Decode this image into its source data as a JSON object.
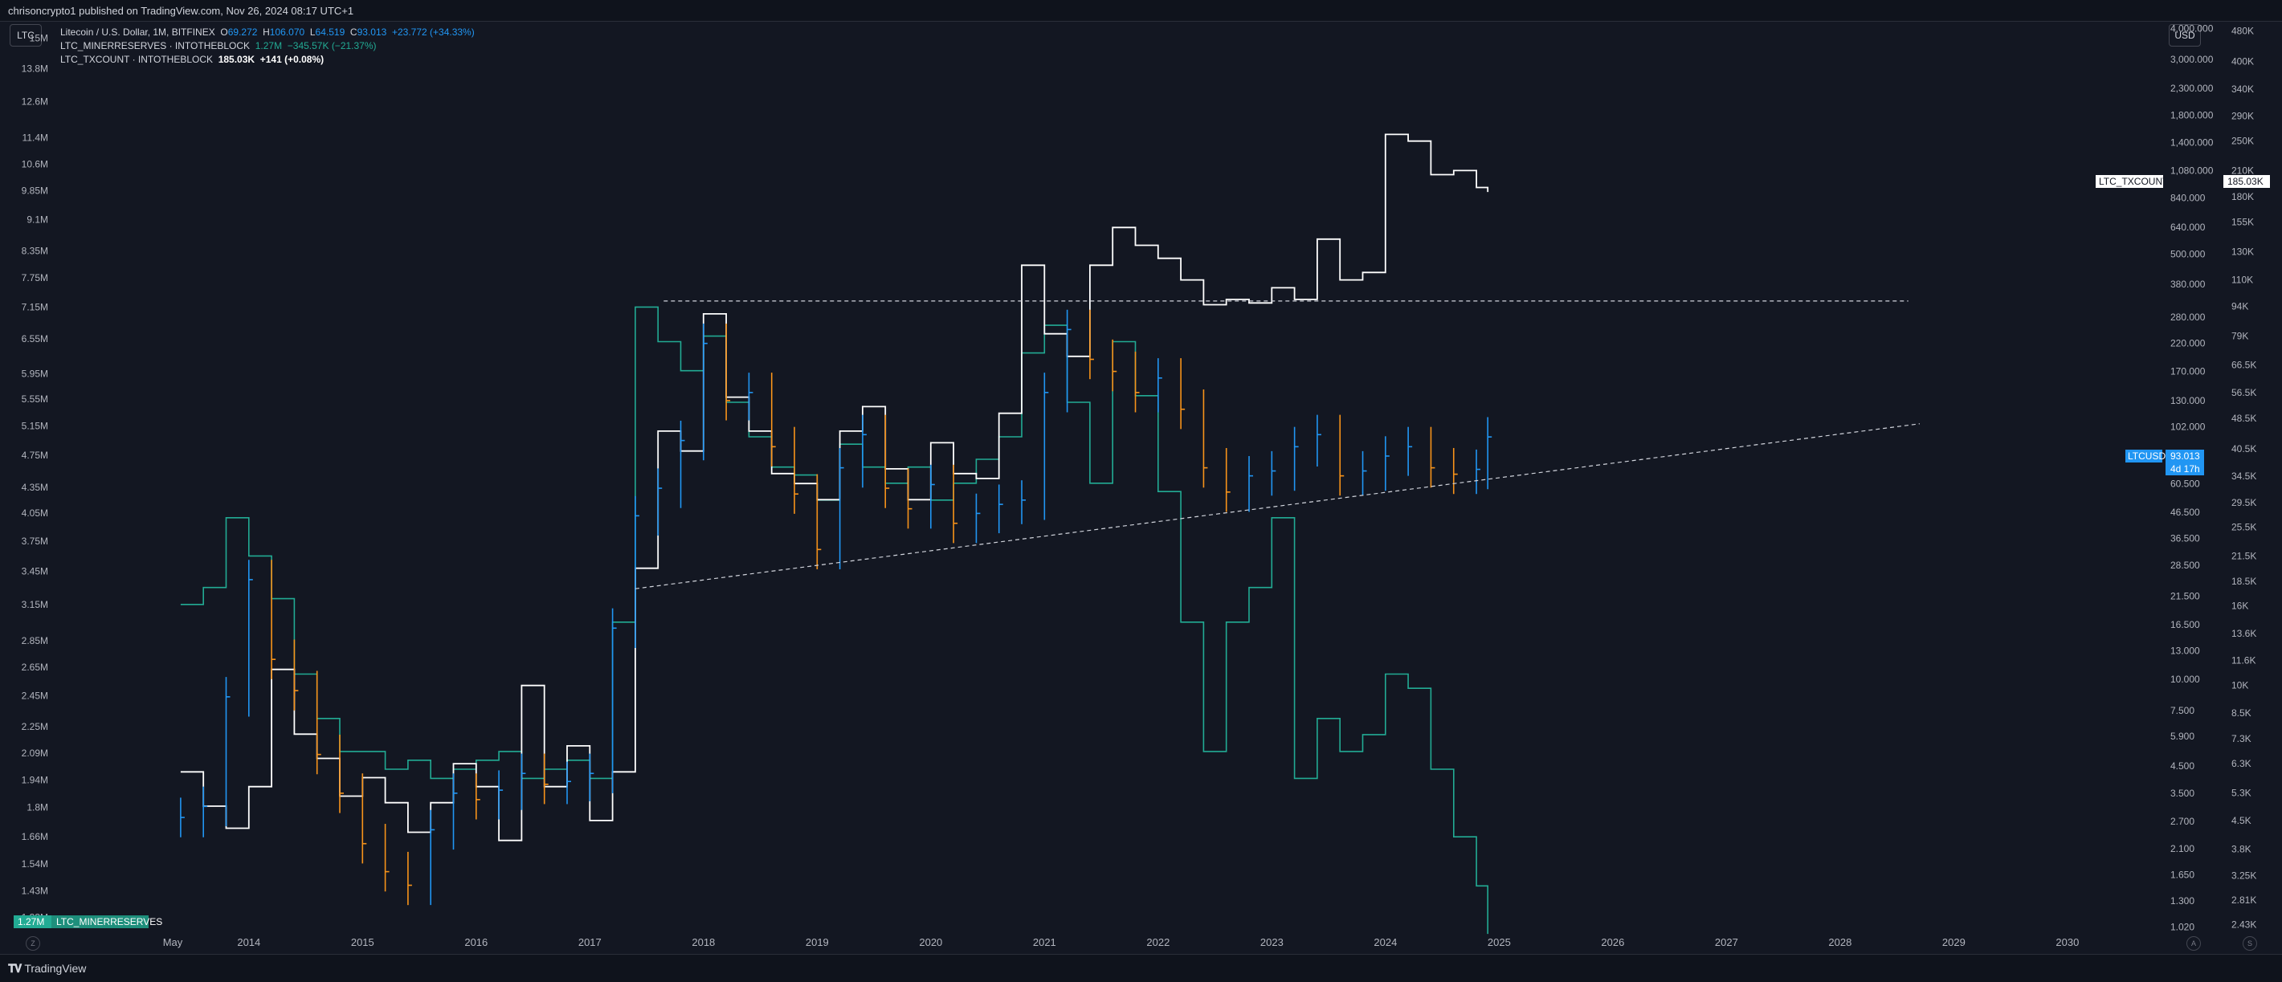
{
  "header": {
    "published": "chrisoncrypto1 published on TradingView.com, Nov 26, 2024 08:17 UTC+1"
  },
  "toolbar": {
    "symbol_button": "LTC",
    "currency_button": "USD"
  },
  "legend": {
    "main": {
      "name": "Litecoin / U.S. Dollar, 1M, BITFINEX",
      "o_label": "O",
      "o_value": "69.272",
      "h_label": "H",
      "h_value": "106.070",
      "l_label": "L",
      "l_value": "64.519",
      "c_label": "C",
      "c_value": "93.013",
      "change": "+23.772 (+34.33%)"
    },
    "miner": {
      "name": "LTC_MINERRESERVES · INTOTHEBLOCK",
      "value": "1.27M",
      "change": "−345.57K (−21.37%)"
    },
    "tx": {
      "name": "LTC_TXCOUNT · INTOTHEBLOCK",
      "value": "185.03K",
      "change": "+141 (+0.08%)"
    }
  },
  "colors": {
    "background": "#131722",
    "price_up": "#2196f3",
    "price_down": "#f7931a",
    "miner_reserves": "#22ab94",
    "tx_count": "#ffffff",
    "trendline": "#d1d4dc"
  },
  "tags": {
    "miner_value": "1.27M",
    "miner_name": "LTC_MINERRESERVES",
    "ltc_name": "LTCUSD",
    "ltc_price": "93.013",
    "ltc_countdown": "4d 17h",
    "tx_name": "LTC_TXCOUNT",
    "tx_value": "185.03K"
  },
  "footer": {
    "brand": "TradingView",
    "left_circle": "Z",
    "right_circle_1": "A",
    "right_circle_2": "S"
  },
  "chart_data": {
    "type": "line",
    "title": "Litecoin / U.S. Dollar, 1M, BITFINEX",
    "log_scale": true,
    "grid": false,
    "x_labels": [
      "May",
      "2014",
      "2015",
      "2016",
      "2017",
      "2018",
      "2019",
      "2020",
      "2021",
      "2022",
      "2023",
      "2024",
      "2025",
      "2026",
      "2027",
      "2028",
      "2029",
      "2030"
    ],
    "xlim": [
      2013.33,
      2030.75
    ],
    "left_axis": {
      "series": "LTC_MINERRESERVES",
      "ticks": [
        "15M",
        "13.8M",
        "12.6M",
        "11.4M",
        "10.6M",
        "9.85M",
        "9.1M",
        "8.35M",
        "7.75M",
        "7.15M",
        "6.55M",
        "5.95M",
        "5.55M",
        "5.15M",
        "4.75M",
        "4.35M",
        "4.05M",
        "3.75M",
        "3.45M",
        "3.15M",
        "2.85M",
        "2.65M",
        "2.45M",
        "2.25M",
        "2.09M",
        "1.94M",
        "1.8M",
        "1.66M",
        "1.54M",
        "1.43M",
        "1.33M"
      ]
    },
    "price_axis": {
      "series": "LTCUSD",
      "ticks": [
        "4,000.000",
        "3,000.000",
        "2,300.000",
        "1,800.000",
        "1,400.000",
        "1,080.000",
        "840.000",
        "640.000",
        "500.000",
        "380.000",
        "280.000",
        "220.000",
        "170.000",
        "130.000",
        "102.000",
        "60.500",
        "46.500",
        "36.500",
        "28.500",
        "21.500",
        "16.500",
        "13.000",
        "10.000",
        "7.500",
        "5.900",
        "4.500",
        "3.500",
        "2.700",
        "2.100",
        "1.650",
        "1.300",
        "1.020"
      ]
    },
    "tx_axis": {
      "series": "LTC_TXCOUNT",
      "ticks": [
        "480K",
        "400K",
        "340K",
        "290K",
        "250K",
        "210K",
        "180K",
        "155K",
        "130K",
        "110K",
        "94K",
        "79K",
        "66.5K",
        "56.5K",
        "48.5K",
        "40.5K",
        "34.5K",
        "29.5K",
        "25.5K",
        "21.5K",
        "18.5K",
        "16K",
        "13.6K",
        "11.6K",
        "10K",
        "8.5K",
        "7.3K",
        "6.3K",
        "5.3K",
        "4.5K",
        "3.8K",
        "3.25K",
        "2.81K",
        "2.43K"
      ]
    },
    "series": [
      {
        "name": "LTCUSD",
        "x": [
          2013.4,
          2013.6,
          2013.8,
          2014.0,
          2014.2,
          2014.4,
          2014.6,
          2014.8,
          2015.0,
          2015.2,
          2015.4,
          2015.6,
          2015.8,
          2016.0,
          2016.2,
          2016.4,
          2016.6,
          2016.8,
          2017.0,
          2017.2,
          2017.4,
          2017.6,
          2017.8,
          2018.0,
          2018.2,
          2018.4,
          2018.6,
          2018.8,
          2019.0,
          2019.2,
          2019.4,
          2019.6,
          2019.8,
          2020.0,
          2020.2,
          2020.4,
          2020.6,
          2020.8,
          2021.0,
          2021.2,
          2021.4,
          2021.6,
          2021.8,
          2022.0,
          2022.2,
          2022.4,
          2022.6,
          2022.8,
          2023.0,
          2023.2,
          2023.4,
          2023.6,
          2023.8,
          2024.0,
          2024.2,
          2024.4,
          2024.6,
          2024.8,
          2024.9
        ],
        "y": [
          2.8,
          3.1,
          8.5,
          25,
          12,
          9,
          5,
          3.5,
          2.2,
          1.7,
          1.5,
          2.5,
          3.5,
          3.3,
          3.6,
          4.2,
          3.8,
          3.9,
          4.2,
          16,
          45,
          58,
          90,
          220,
          130,
          140,
          85,
          55,
          33,
          70,
          95,
          58,
          48,
          60,
          42,
          46,
          50,
          52,
          140,
          250,
          190,
          170,
          140,
          160,
          120,
          70,
          56,
          65,
          68,
          85,
          95,
          65,
          68,
          78,
          85,
          70,
          66,
          69,
          93
        ]
      },
      {
        "name": "LTC_MINERRESERVES",
        "x": [
          2013.4,
          2013.6,
          2013.8,
          2014.0,
          2014.2,
          2014.4,
          2014.6,
          2014.8,
          2015.0,
          2015.2,
          2015.4,
          2015.6,
          2015.8,
          2016.0,
          2016.2,
          2016.4,
          2016.6,
          2016.8,
          2017.0,
          2017.2,
          2017.4,
          2017.6,
          2017.8,
          2018.0,
          2018.2,
          2018.4,
          2018.6,
          2018.8,
          2019.0,
          2019.2,
          2019.4,
          2019.6,
          2019.8,
          2020.0,
          2020.2,
          2020.4,
          2020.6,
          2020.8,
          2021.0,
          2021.2,
          2021.4,
          2021.6,
          2021.8,
          2022.0,
          2022.2,
          2022.4,
          2022.6,
          2022.8,
          2023.0,
          2023.2,
          2023.4,
          2023.6,
          2023.8,
          2024.0,
          2024.2,
          2024.4,
          2024.6,
          2024.8,
          2024.9
        ],
        "y": [
          3.15,
          3.3,
          4.0,
          3.6,
          3.2,
          2.6,
          2.3,
          2.1,
          2.1,
          2.0,
          2.05,
          1.95,
          2.0,
          2.05,
          2.1,
          1.95,
          2.0,
          2.05,
          1.95,
          3.0,
          7.15,
          6.5,
          6.0,
          6.6,
          5.5,
          5.0,
          4.6,
          4.5,
          4.2,
          4.9,
          4.6,
          4.4,
          4.6,
          4.2,
          4.4,
          4.7,
          5.0,
          6.3,
          6.8,
          5.5,
          4.4,
          6.5,
          5.6,
          4.3,
          3.0,
          2.1,
          3.0,
          3.3,
          4.0,
          1.95,
          2.3,
          2.1,
          2.2,
          2.6,
          2.5,
          2.0,
          1.66,
          1.45,
          1.27
        ]
      },
      {
        "name": "LTC_TXCOUNT",
        "x": [
          2013.4,
          2013.6,
          2013.8,
          2014.0,
          2014.2,
          2014.4,
          2014.6,
          2014.8,
          2015.0,
          2015.2,
          2015.4,
          2015.6,
          2015.8,
          2016.0,
          2016.2,
          2016.4,
          2016.6,
          2016.8,
          2017.0,
          2017.2,
          2017.4,
          2017.6,
          2017.8,
          2018.0,
          2018.2,
          2018.4,
          2018.6,
          2018.8,
          2019.0,
          2019.2,
          2019.4,
          2019.6,
          2019.8,
          2020.0,
          2020.2,
          2020.4,
          2020.6,
          2020.8,
          2021.0,
          2021.2,
          2021.4,
          2021.6,
          2021.8,
          2022.0,
          2022.2,
          2022.4,
          2022.6,
          2022.8,
          2023.0,
          2023.2,
          2023.4,
          2023.6,
          2023.8,
          2024.0,
          2024.2,
          2024.4,
          2024.6,
          2024.8,
          2024.9
        ],
        "y": [
          6.0,
          4.9,
          4.3,
          5.5,
          11,
          7.5,
          6.5,
          5.2,
          5.8,
          5.0,
          4.2,
          5.0,
          6.3,
          5.5,
          4.0,
          10,
          5.5,
          7,
          4.5,
          6,
          20,
          45,
          40,
          90,
          55,
          45,
          35,
          33,
          30,
          45,
          52,
          36,
          30,
          42,
          35,
          34,
          50,
          120,
          80,
          70,
          120,
          150,
          135,
          125,
          110,
          95,
          98,
          96,
          105,
          98,
          140,
          110,
          115,
          260,
          250,
          205,
          210,
          190,
          185
        ]
      }
    ],
    "annotations": [
      {
        "type": "horizontal-dashed",
        "series": "LTCUSD",
        "y": 325,
        "x_range": [
          2017.65,
          2028.6
        ]
      },
      {
        "type": "rising-trendline-dashed",
        "series": "LTCUSD",
        "points": [
          [
            2017.4,
            23
          ],
          [
            2028.7,
            105
          ]
        ]
      }
    ]
  }
}
